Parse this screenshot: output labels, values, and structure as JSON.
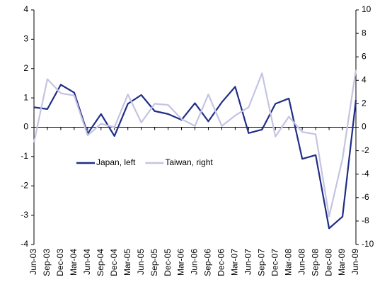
{
  "chart_data": {
    "type": "line",
    "categories": [
      "Jun-03",
      "Sep-03",
      "Dec-03",
      "Mar-04",
      "Jun-04",
      "Sep-04",
      "Dec-04",
      "Mar-05",
      "Jun-05",
      "Sep-05",
      "Dec-05",
      "Mar-06",
      "Jun-06",
      "Sep-06",
      "Dec-06",
      "Mar-07",
      "Jun-07",
      "Sep-07",
      "Dec-07",
      "Mar-08",
      "Jun-08",
      "Sep-08",
      "Dec-08",
      "Mar-09",
      "Jun-09"
    ],
    "series": [
      {
        "name": "Japan, left",
        "color": "#1f2d86",
        "axis": "y",
        "values": [
          0.68,
          0.62,
          1.45,
          1.18,
          -0.22,
          0.45,
          -0.3,
          0.8,
          1.1,
          0.55,
          0.45,
          0.25,
          0.82,
          0.2,
          0.85,
          1.38,
          -0.2,
          -0.08,
          0.8,
          0.98,
          -1.08,
          -0.95,
          -3.45,
          -3.05,
          0.93
        ]
      },
      {
        "name": "Taiwan, right",
        "color": "#c4c4e2",
        "axis": "y2",
        "values": [
          -1.3,
          4.1,
          2.9,
          2.7,
          -0.7,
          0.3,
          0.0,
          2.8,
          0.4,
          2.0,
          1.9,
          0.7,
          0.1,
          2.8,
          0.1,
          1.0,
          1.7,
          4.6,
          -0.8,
          0.9,
          -0.4,
          -0.6,
          -7.6,
          -2.7,
          4.9
        ]
      }
    ],
    "ylim": [
      -4,
      4
    ],
    "yticks": [
      -4,
      -3,
      -2,
      -1,
      0,
      1,
      2,
      3,
      4
    ],
    "y2lim": [
      -10,
      10
    ],
    "y2ticks": [
      -10,
      -8,
      -6,
      -4,
      -2,
      0,
      2,
      4,
      6,
      8,
      10
    ],
    "grid": false,
    "legend": "center"
  }
}
